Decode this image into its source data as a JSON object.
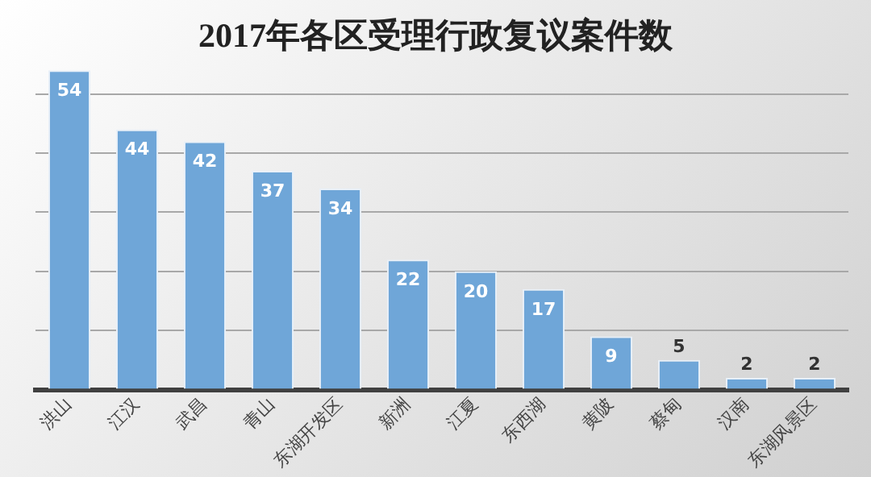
{
  "chart_data": {
    "type": "bar",
    "title": "2017年各区受理行政复议案件数",
    "categories": [
      "洪山",
      "江汉",
      "武昌",
      "青山",
      "东湖开发区",
      "新洲",
      "江夏",
      "东西湖",
      "黄陂",
      "蔡甸",
      "汉南",
      "东湖风景区"
    ],
    "values": [
      54,
      44,
      42,
      37,
      34,
      22,
      20,
      17,
      9,
      5,
      2,
      2
    ],
    "color": "#6fa6d8",
    "ylim": [
      0,
      55
    ],
    "yticks": [
      {
        "value": 0,
        "label": null
      },
      {
        "value": 10,
        "label": null
      },
      {
        "value": 20,
        "label": null
      },
      {
        "value": 30,
        "label": null
      },
      {
        "value": 40,
        "label": null
      },
      {
        "value": 50,
        "label": null
      }
    ],
    "grid": "y",
    "tick_labels": "x",
    "data_labels": true,
    "legend": false
  }
}
